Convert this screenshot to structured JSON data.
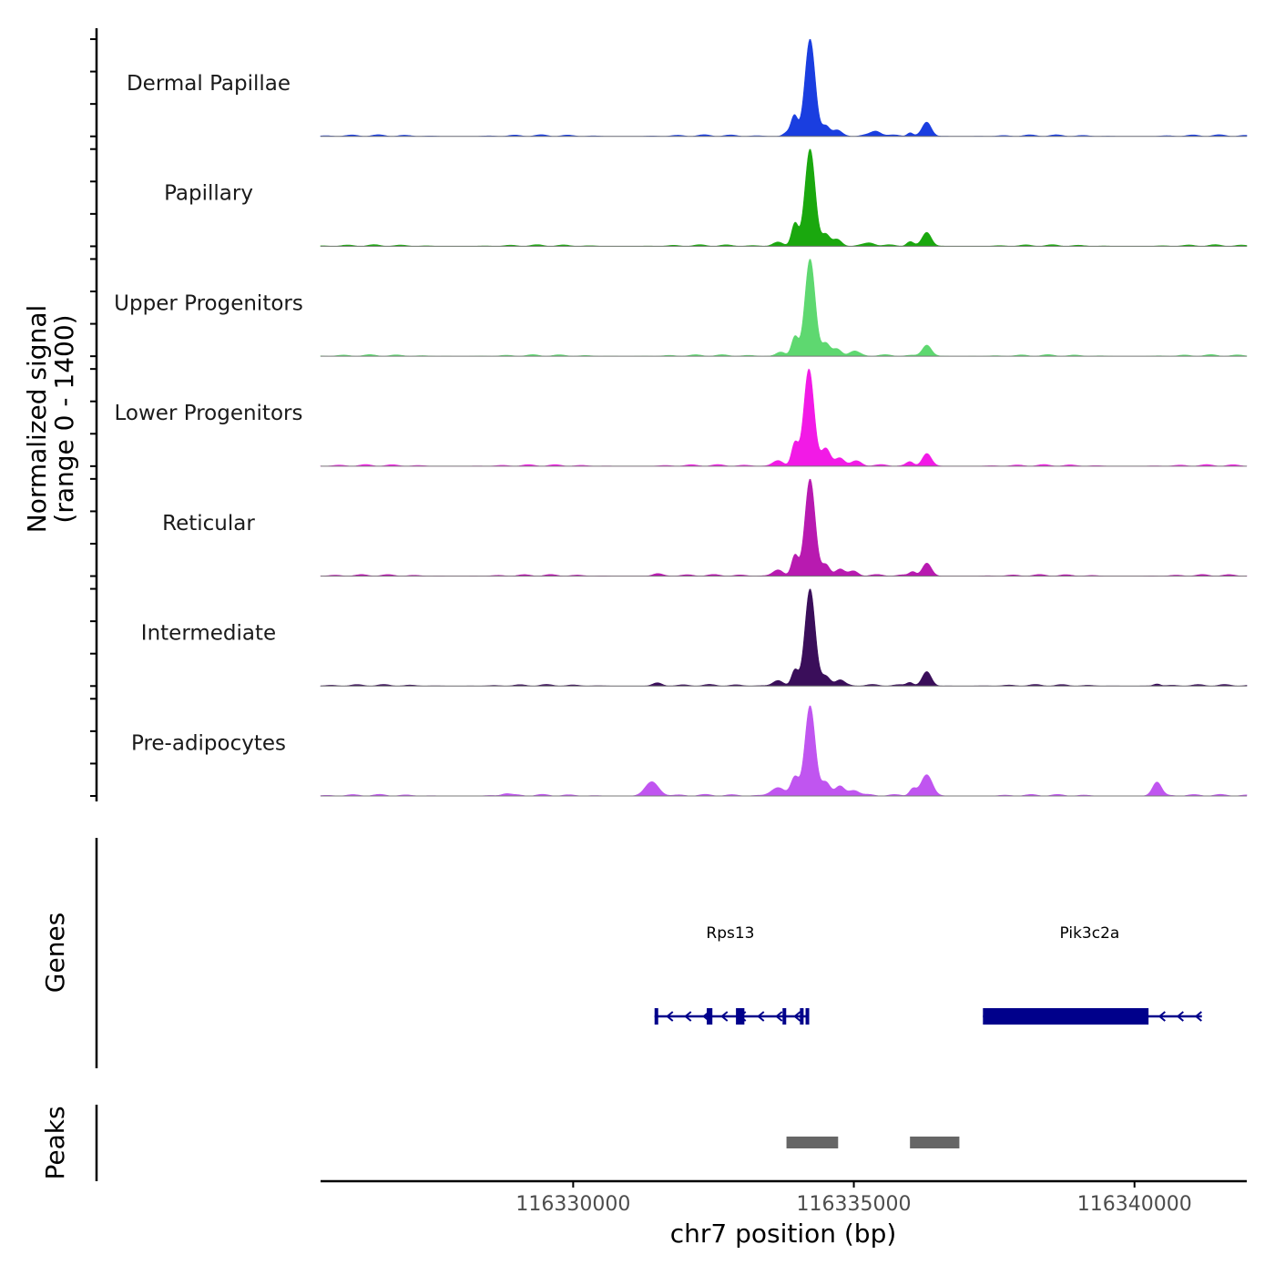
{
  "chart_data": {
    "type": "area",
    "title": "",
    "ylabel_line1": "Normalized signal",
    "ylabel_line2": "(range 0 - 1400)",
    "xlabel": "chr7 position (bp)",
    "xlim": [
      116325500,
      116342000
    ],
    "ylim": [
      0,
      1400
    ],
    "xticks": [
      116330000,
      116335000,
      116340000
    ],
    "xtick_labels": [
      "116330000",
      "116335000",
      "116340000"
    ],
    "tracks": [
      {
        "name": "Dermal Papillae",
        "color": "#1a3ee0",
        "peaks": [
          [
            116334220,
            1400,
            90
          ],
          [
            116333940,
            300,
            60
          ],
          [
            116334500,
            150,
            70
          ],
          [
            116334700,
            80,
            80
          ],
          [
            116335400,
            70,
            90
          ],
          [
            116336300,
            200,
            80
          ],
          [
            116336000,
            50,
            50
          ],
          [
            116333800,
            50,
            60
          ]
        ]
      },
      {
        "name": "Papillary",
        "color": "#1aa80e",
        "peaks": [
          [
            116334220,
            1400,
            90
          ],
          [
            116333950,
            330,
            60
          ],
          [
            116334500,
            170,
            70
          ],
          [
            116334700,
            90,
            80
          ],
          [
            116336300,
            200,
            80
          ],
          [
            116336000,
            60,
            60
          ],
          [
            116333650,
            60,
            90
          ],
          [
            116335300,
            40,
            90
          ]
        ]
      },
      {
        "name": "Upper Progenitors",
        "color": "#5ed870",
        "peaks": [
          [
            116334220,
            1400,
            90
          ],
          [
            116333950,
            280,
            60
          ],
          [
            116334500,
            180,
            70
          ],
          [
            116334700,
            100,
            80
          ],
          [
            116335000,
            60,
            90
          ],
          [
            116336300,
            160,
            80
          ],
          [
            116333700,
            60,
            80
          ]
        ]
      },
      {
        "name": "Lower Progenitors",
        "color": "#f21ae6",
        "peaks": [
          [
            116334200,
            1400,
            90
          ],
          [
            116333950,
            330,
            60
          ],
          [
            116334500,
            250,
            80
          ],
          [
            116334750,
            120,
            80
          ],
          [
            116335050,
            60,
            90
          ],
          [
            116336300,
            180,
            80
          ],
          [
            116336000,
            50,
            60
          ],
          [
            116333650,
            80,
            90
          ]
        ]
      },
      {
        "name": "Reticular",
        "color": "#b81ab0",
        "peaks": [
          [
            116334220,
            1400,
            90
          ],
          [
            116333950,
            300,
            60
          ],
          [
            116334500,
            160,
            70
          ],
          [
            116334750,
            100,
            80
          ],
          [
            116335000,
            60,
            80
          ],
          [
            116336300,
            180,
            80
          ],
          [
            116336050,
            60,
            60
          ],
          [
            116333650,
            90,
            90
          ],
          [
            116331500,
            30,
            80
          ]
        ]
      },
      {
        "name": "Intermediate",
        "color": "#3a0e5a",
        "peaks": [
          [
            116334220,
            1400,
            90
          ],
          [
            116333950,
            230,
            60
          ],
          [
            116334500,
            140,
            80
          ],
          [
            116334750,
            80,
            80
          ],
          [
            116336300,
            200,
            80
          ],
          [
            116336000,
            50,
            60
          ],
          [
            116333650,
            80,
            90
          ],
          [
            116331500,
            40,
            80
          ],
          [
            116340400,
            30,
            60
          ]
        ]
      },
      {
        "name": "Pre-adipocytes",
        "color": "#c055f0",
        "peaks": [
          [
            116334220,
            1300,
            90
          ],
          [
            116333950,
            270,
            70
          ],
          [
            116334500,
            200,
            80
          ],
          [
            116334750,
            130,
            80
          ],
          [
            116335000,
            80,
            90
          ],
          [
            116336300,
            300,
            100
          ],
          [
            116336050,
            100,
            60
          ],
          [
            116331400,
            200,
            120
          ],
          [
            116333650,
            120,
            120
          ],
          [
            116340400,
            200,
            80
          ],
          [
            116328800,
            30,
            80
          ]
        ]
      }
    ],
    "genes_label": "Genes",
    "peaks_label": "Peaks",
    "genes": [
      {
        "name": "Rps13",
        "start": 116331450,
        "end": 116334200,
        "exons": [
          [
            116331450,
            116331500
          ],
          [
            116332380,
            116332480
          ],
          [
            116332900,
            116333050
          ],
          [
            116333730,
            116333790
          ],
          [
            116334040,
            116334080
          ],
          [
            116334140,
            116334200
          ]
        ],
        "label_pos": 116332800
      },
      {
        "name": "Pik3c2a",
        "start": 116337300,
        "end": 116341200,
        "exons": [
          [
            116337300,
            116340250
          ]
        ],
        "label_pos": 116339200
      }
    ],
    "peak_regions": [
      [
        116333800,
        116334720
      ],
      [
        116336000,
        116336880
      ]
    ]
  }
}
